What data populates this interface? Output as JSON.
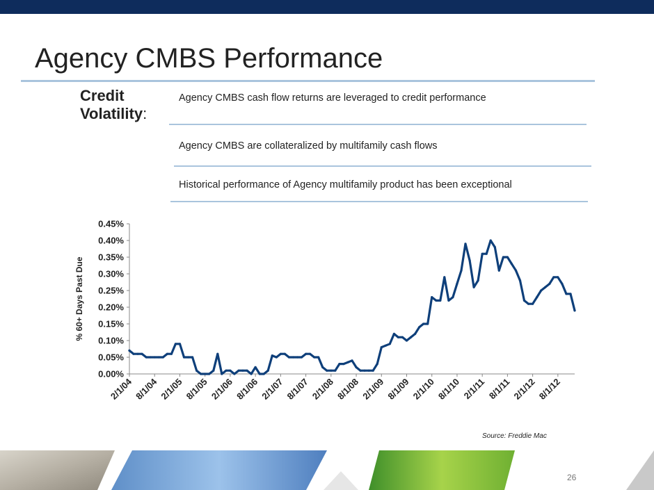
{
  "slide": {
    "title": "Agency CMBS Performance",
    "label_line1": "Credit",
    "label_line2": "Volatility",
    "label_colon": ":",
    "bullets": [
      "Agency CMBS cash flow returns are leveraged to credit performance",
      "Agency CMBS are collateralized by multifamily cash flows",
      "Historical performance of Agency multifamily product has been exceptional"
    ],
    "source": "Source: Freddie Mac",
    "page_number": "26",
    "colors": {
      "top_bar": "#0e2c5c",
      "rule": "#a9c4dd",
      "line": "#0e3f7a"
    }
  },
  "chart_data": {
    "type": "line",
    "title": "",
    "ylabel": "% 60+ Days Past Due",
    "xlabel": "",
    "ylim": [
      0,
      0.45
    ],
    "y_unit": "percent",
    "y_ticks": [
      "0.00%",
      "0.05%",
      "0.10%",
      "0.15%",
      "0.20%",
      "0.25%",
      "0.30%",
      "0.35%",
      "0.40%",
      "0.45%"
    ],
    "x_tick_labels": [
      "2/1/04",
      "8/1/04",
      "2/1/05",
      "8/1/05",
      "2/1/06",
      "8/1/06",
      "2/1/07",
      "8/1/07",
      "2/1/08",
      "8/1/08",
      "2/1/09",
      "8/1/09",
      "2/1/10",
      "8/1/10",
      "2/1/11",
      "8/1/11",
      "2/1/12",
      "8/1/12"
    ],
    "grid": false,
    "legend": "none",
    "series": [
      {
        "values": [
          0.07,
          0.06,
          0.06,
          0.06,
          0.05,
          0.05,
          0.05,
          0.05,
          0.05,
          0.06,
          0.06,
          0.09,
          0.09,
          0.05,
          0.05,
          0.05,
          0.01,
          0.0,
          0.0,
          0.0,
          0.01,
          0.06,
          0.0,
          0.01,
          0.01,
          0.0,
          0.01,
          0.01,
          0.01,
          0.0,
          0.02,
          0.0,
          0.0,
          0.01,
          0.055,
          0.05,
          0.06,
          0.06,
          0.05,
          0.05,
          0.05,
          0.05,
          0.06,
          0.06,
          0.05,
          0.05,
          0.02,
          0.01,
          0.01,
          0.01,
          0.03,
          0.03,
          0.035,
          0.04,
          0.02,
          0.01,
          0.01,
          0.01,
          0.01,
          0.03,
          0.08,
          0.085,
          0.09,
          0.12,
          0.11,
          0.11,
          0.1,
          0.11,
          0.12,
          0.14,
          0.15,
          0.15,
          0.23,
          0.22,
          0.22,
          0.29,
          0.22,
          0.23,
          0.27,
          0.31,
          0.39,
          0.34,
          0.26,
          0.28,
          0.36,
          0.36,
          0.4,
          0.38,
          0.31,
          0.35,
          0.35,
          0.33,
          0.31,
          0.28,
          0.22,
          0.21,
          0.21,
          0.23,
          0.25,
          0.26,
          0.27,
          0.29,
          0.29,
          0.27,
          0.24,
          0.24,
          0.19
        ]
      }
    ]
  }
}
